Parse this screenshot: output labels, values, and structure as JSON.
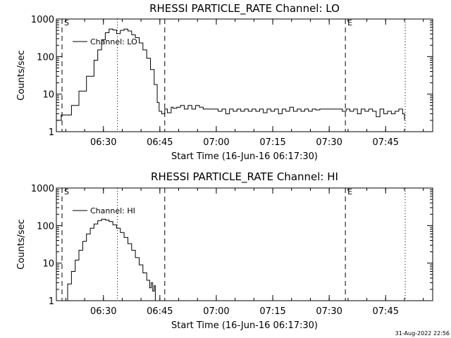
{
  "chart_data": [
    {
      "type": "line",
      "title": "RHESSI PARTICLE_RATE Channel: LO",
      "ylabel": "Counts/sec",
      "xlabel": "Start Time (16-Jun-16 06:17:30)",
      "yscale": "log",
      "ylim": [
        1,
        1000
      ],
      "xlim_minutes": [
        0,
        100
      ],
      "x_ticks": [
        {
          "t": 12.5,
          "label": "06:30"
        },
        {
          "t": 27.5,
          "label": "06:45"
        },
        {
          "t": 42.5,
          "label": "07:00"
        },
        {
          "t": 57.5,
          "label": "07:15"
        },
        {
          "t": 72.5,
          "label": "07:30"
        },
        {
          "t": 87.5,
          "label": "07:45"
        }
      ],
      "y_ticks": [
        {
          "v": 1,
          "label": "1"
        },
        {
          "v": 10,
          "label": "10"
        },
        {
          "v": 100,
          "label": "100"
        },
        {
          "v": 1000,
          "label": "1000"
        }
      ],
      "legend": "Channel: LO",
      "markers": {
        "start_label": "S",
        "end_label": "E"
      },
      "vlines": [
        {
          "t": 1.5,
          "style": "dashed"
        },
        {
          "t": 16.2,
          "style": "dotted"
        },
        {
          "t": 28.8,
          "style": "dashed"
        },
        {
          "t": 76.8,
          "style": "dashed"
        },
        {
          "t": 92.7,
          "style": "dotted"
        }
      ],
      "series": [
        {
          "name": "LO",
          "x": [
            0,
            0.8,
            1.3,
            2.0,
            3.0,
            4.0,
            6.0,
            8.0,
            10.0,
            11.0,
            12.0,
            13.0,
            14.0,
            15.0,
            16.0,
            17.0,
            18.0,
            19.0,
            20.0,
            21.0,
            22.0,
            23.0,
            24.0,
            25.0,
            26.0,
            26.8,
            27.3,
            28.0,
            28.8,
            29.5,
            30.5,
            31.0,
            32.0,
            33.0,
            34.0,
            35.0,
            36.0,
            37.0,
            38.0,
            39.0,
            40.0,
            41.0,
            42.0,
            43.0,
            44.0,
            45.0,
            46.0,
            47.0,
            48.0,
            49.0,
            50.0,
            51.0,
            52.0,
            53.0,
            54.0,
            55.0,
            56.0,
            57.0,
            58.0,
            59.0,
            60.0,
            61.0,
            62.0,
            63.0,
            64.0,
            65.0,
            66.0,
            67.0,
            68.0,
            69.0,
            70.0,
            71.0,
            72.0,
            73.0,
            74.0,
            75.0,
            76.0,
            77.0,
            78.0,
            79.0,
            80.0,
            81.0,
            82.0,
            83.0,
            84.0,
            85.0,
            86.0,
            87.0,
            88.0,
            89.0,
            90.0,
            91.0,
            92.0,
            92.5
          ],
          "y": [
            2,
            2,
            2.8,
            2.8,
            2.8,
            5,
            12,
            30,
            80,
            150,
            280,
            430,
            540,
            510,
            410,
            500,
            540,
            480,
            380,
            320,
            230,
            150,
            90,
            45,
            18,
            6,
            3.5,
            3,
            4,
            3.2,
            4.5,
            4.2,
            4.5,
            5,
            4,
            5,
            4,
            5,
            4.5,
            4,
            4,
            4,
            4,
            3.5,
            4,
            3,
            4,
            3.5,
            4,
            3.5,
            4,
            3.5,
            4,
            3.5,
            4,
            3.2,
            4,
            3.5,
            4,
            3,
            4,
            3.5,
            4.5,
            3.5,
            4,
            3.5,
            4,
            3.5,
            4,
            3.8,
            4,
            4,
            4,
            4,
            4,
            4,
            3.5,
            4,
            3.5,
            4,
            3,
            4,
            3.5,
            4,
            3.5,
            2.5,
            4,
            3,
            3.5,
            3,
            3.5,
            4,
            3,
            2
          ]
        }
      ]
    },
    {
      "type": "line",
      "title": "RHESSI PARTICLE_RATE Channel: HI",
      "ylabel": "Counts/sec",
      "xlabel": "Start Time (16-Jun-16 06:17:30)",
      "yscale": "log",
      "ylim": [
        1,
        1000
      ],
      "xlim_minutes": [
        0,
        100
      ],
      "x_ticks": [
        {
          "t": 12.5,
          "label": "06:30"
        },
        {
          "t": 27.5,
          "label": "06:45"
        },
        {
          "t": 42.5,
          "label": "07:00"
        },
        {
          "t": 57.5,
          "label": "07:15"
        },
        {
          "t": 72.5,
          "label": "07:30"
        },
        {
          "t": 87.5,
          "label": "07:45"
        }
      ],
      "y_ticks": [
        {
          "v": 1,
          "label": "1"
        },
        {
          "v": 10,
          "label": "10"
        },
        {
          "v": 100,
          "label": "100"
        },
        {
          "v": 1000,
          "label": "1000"
        }
      ],
      "legend": "Channel: HI",
      "markers": {
        "start_label": "S",
        "end_label": "E"
      },
      "vlines": [
        {
          "t": 1.5,
          "style": "dashed"
        },
        {
          "t": 16.2,
          "style": "dotted"
        },
        {
          "t": 28.8,
          "style": "dashed"
        },
        {
          "t": 76.8,
          "style": "dashed"
        },
        {
          "t": 92.7,
          "style": "dotted"
        }
      ],
      "series": [
        {
          "name": "HI",
          "x": [
            2.0,
            3.0,
            4.0,
            5.0,
            6.0,
            7.0,
            8.0,
            9.0,
            10.0,
            11.0,
            12.0,
            13.0,
            14.0,
            15.0,
            16.0,
            17.0,
            18.0,
            19.0,
            20.0,
            21.0,
            22.0,
            23.0,
            24.0,
            24.8,
            25.2,
            25.6,
            26.0,
            26.3
          ],
          "y": [
            1,
            2.8,
            6,
            12,
            22,
            38,
            60,
            85,
            110,
            135,
            148,
            140,
            128,
            105,
            85,
            65,
            48,
            33,
            22,
            14,
            9,
            5.5,
            3.5,
            2.2,
            3,
            1.8,
            2.5,
            1
          ]
        }
      ]
    }
  ],
  "footer": "31-Aug-2022 22:56"
}
